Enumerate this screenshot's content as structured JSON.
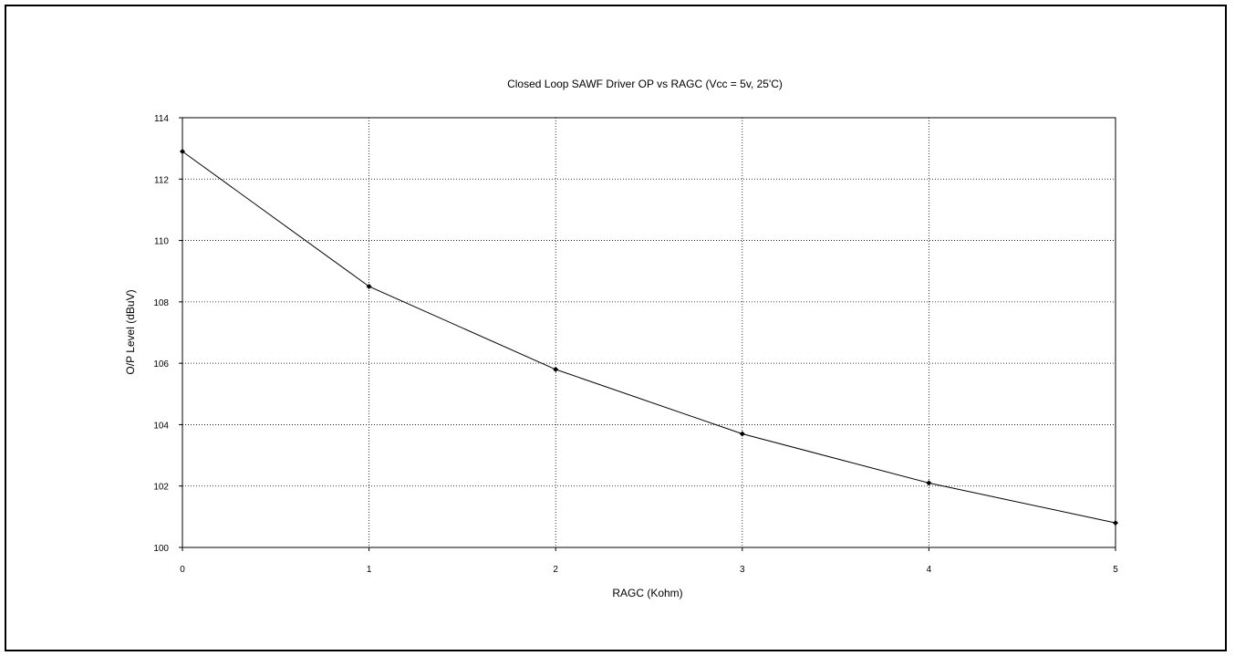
{
  "chart_data": {
    "type": "line",
    "title": "Closed Loop SAWF Driver OP vs RAGC (Vcc = 5v, 25'C)",
    "xlabel": "RAGC (Kohm)",
    "ylabel": "O/P Level (dBuV)",
    "xlim": [
      0,
      5
    ],
    "ylim": [
      100,
      114
    ],
    "x_ticks": [
      0,
      1,
      2,
      3,
      4,
      5
    ],
    "x_tick_labels": [
      "0",
      "1",
      "2",
      "3",
      "4",
      "5"
    ],
    "y_ticks": [
      100,
      102,
      104,
      106,
      108,
      110,
      112,
      114
    ],
    "y_tick_labels": [
      "100",
      "102",
      "104",
      "106",
      "108",
      "110",
      "112",
      "114"
    ],
    "grid": true,
    "grid_style": "dotted",
    "legend": "none",
    "series": [
      {
        "x": [
          0,
          1,
          2,
          3,
          4,
          5
        ],
        "y": [
          112.9,
          108.5,
          105.8,
          103.7,
          102.1,
          100.8
        ],
        "color": "#000000",
        "marker": "diamond"
      }
    ]
  }
}
